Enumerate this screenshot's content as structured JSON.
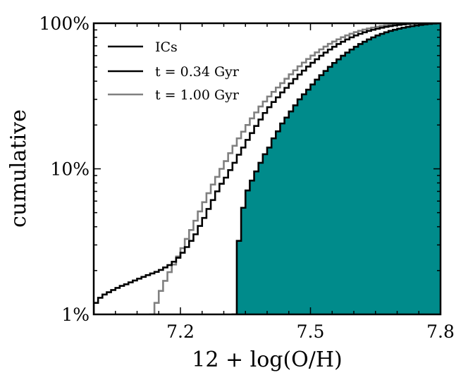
{
  "chart_data": {
    "type": "step",
    "xlabel": "12 + log(O/H)",
    "ylabel": "cumulative",
    "xlim": [
      7.0,
      7.8
    ],
    "ylim_percent": [
      1,
      100
    ],
    "yscale": "log",
    "x_ticks": [
      7.2,
      7.5,
      7.8
    ],
    "x_tick_labels": [
      "7.2",
      "7.5",
      "7.8"
    ],
    "y_ticks": [
      1,
      10,
      100
    ],
    "y_tick_labels": [
      "1%",
      "10%",
      "100%"
    ],
    "legend_position": "top-left",
    "series": [
      {
        "name": "ICs",
        "color": "#000000",
        "fill": "#008b8b",
        "filled": true,
        "points": [
          [
            7.32,
            1.0
          ],
          [
            7.33,
            3.2
          ],
          [
            7.34,
            5.4
          ],
          [
            7.35,
            7.1
          ],
          [
            7.36,
            8.3
          ],
          [
            7.37,
            9.6
          ],
          [
            7.38,
            11.0
          ],
          [
            7.39,
            12.6
          ],
          [
            7.4,
            14.0
          ],
          [
            7.41,
            16.2
          ],
          [
            7.42,
            18.1
          ],
          [
            7.43,
            20.5
          ],
          [
            7.44,
            22.5
          ],
          [
            7.45,
            24.8
          ],
          [
            7.46,
            27.3
          ],
          [
            7.47,
            30.0
          ],
          [
            7.48,
            32.5
          ],
          [
            7.49,
            35.0
          ],
          [
            7.5,
            38.0
          ],
          [
            7.51,
            41.0
          ],
          [
            7.52,
            44.0
          ],
          [
            7.53,
            47.0
          ],
          [
            7.54,
            50.2
          ],
          [
            7.55,
            53.4
          ],
          [
            7.56,
            56.5
          ],
          [
            7.57,
            59.8
          ],
          [
            7.58,
            62.9
          ],
          [
            7.59,
            66.0
          ],
          [
            7.6,
            69.0
          ],
          [
            7.61,
            72.0
          ],
          [
            7.62,
            74.7
          ],
          [
            7.63,
            77.4
          ],
          [
            7.64,
            80.0
          ],
          [
            7.65,
            82.4
          ],
          [
            7.66,
            84.6
          ],
          [
            7.67,
            86.7
          ],
          [
            7.68,
            88.6
          ],
          [
            7.69,
            90.3
          ],
          [
            7.7,
            91.8
          ],
          [
            7.71,
            93.2
          ],
          [
            7.72,
            94.5
          ],
          [
            7.73,
            95.6
          ],
          [
            7.74,
            96.6
          ],
          [
            7.75,
            97.5
          ],
          [
            7.76,
            98.3
          ],
          [
            7.77,
            99.0
          ],
          [
            7.78,
            99.5
          ],
          [
            7.79,
            100.0
          ]
        ]
      },
      {
        "name": "t = 0.34 Gyr",
        "color": "#000000",
        "points": [
          [
            7.0,
            1.2
          ],
          [
            7.01,
            1.3
          ],
          [
            7.02,
            1.37
          ],
          [
            7.03,
            1.42
          ],
          [
            7.04,
            1.47
          ],
          [
            7.05,
            1.52
          ],
          [
            7.06,
            1.57
          ],
          [
            7.07,
            1.61
          ],
          [
            7.08,
            1.66
          ],
          [
            7.09,
            1.71
          ],
          [
            7.1,
            1.76
          ],
          [
            7.11,
            1.81
          ],
          [
            7.12,
            1.86
          ],
          [
            7.13,
            1.91
          ],
          [
            7.14,
            1.96
          ],
          [
            7.15,
            2.02
          ],
          [
            7.16,
            2.1
          ],
          [
            7.17,
            2.18
          ],
          [
            7.18,
            2.3
          ],
          [
            7.19,
            2.45
          ],
          [
            7.2,
            2.65
          ],
          [
            7.21,
            2.9
          ],
          [
            7.22,
            3.2
          ],
          [
            7.23,
            3.55
          ],
          [
            7.24,
            4.05
          ],
          [
            7.25,
            4.6
          ],
          [
            7.26,
            5.3
          ],
          [
            7.27,
            6.1
          ],
          [
            7.28,
            7.0
          ],
          [
            7.29,
            7.9
          ],
          [
            7.3,
            8.7
          ],
          [
            7.31,
            9.8
          ],
          [
            7.32,
            11.0
          ],
          [
            7.33,
            12.5
          ],
          [
            7.34,
            14.0
          ],
          [
            7.35,
            15.8
          ],
          [
            7.36,
            17.6
          ],
          [
            7.37,
            19.7
          ],
          [
            7.38,
            21.8
          ],
          [
            7.39,
            24.2
          ],
          [
            7.4,
            26.5
          ],
          [
            7.41,
            28.8
          ],
          [
            7.42,
            31.0
          ],
          [
            7.43,
            33.5
          ],
          [
            7.44,
            36.0
          ],
          [
            7.45,
            38.6
          ],
          [
            7.46,
            41.4
          ],
          [
            7.47,
            44.4
          ],
          [
            7.48,
            47.3
          ],
          [
            7.49,
            50.4
          ],
          [
            7.5,
            53.5
          ],
          [
            7.51,
            56.6
          ],
          [
            7.52,
            59.8
          ],
          [
            7.53,
            62.9
          ],
          [
            7.54,
            66.0
          ],
          [
            7.55,
            69.0
          ],
          [
            7.56,
            72.0
          ],
          [
            7.57,
            74.7
          ],
          [
            7.58,
            77.4
          ],
          [
            7.59,
            80.0
          ],
          [
            7.6,
            82.4
          ],
          [
            7.61,
            84.6
          ],
          [
            7.62,
            86.7
          ],
          [
            7.63,
            88.6
          ],
          [
            7.64,
            90.3
          ],
          [
            7.65,
            91.8
          ],
          [
            7.66,
            93.2
          ],
          [
            7.67,
            94.5
          ],
          [
            7.68,
            95.6
          ],
          [
            7.69,
            96.6
          ],
          [
            7.7,
            97.5
          ],
          [
            7.71,
            98.3
          ],
          [
            7.72,
            99.0
          ],
          [
            7.73,
            99.5
          ],
          [
            7.74,
            100.0
          ]
        ]
      },
      {
        "name": "t = 1.00 Gyr",
        "color": "#808080",
        "points": [
          [
            7.13,
            1.0
          ],
          [
            7.14,
            1.2
          ],
          [
            7.15,
            1.45
          ],
          [
            7.16,
            1.7
          ],
          [
            7.17,
            1.95
          ],
          [
            7.18,
            2.2
          ],
          [
            7.19,
            2.5
          ],
          [
            7.2,
            2.85
          ],
          [
            7.21,
            3.3
          ],
          [
            7.22,
            3.8
          ],
          [
            7.23,
            4.4
          ],
          [
            7.24,
            5.1
          ],
          [
            7.25,
            5.9
          ],
          [
            7.26,
            6.8
          ],
          [
            7.27,
            7.8
          ],
          [
            7.28,
            8.8
          ],
          [
            7.29,
            10.0
          ],
          [
            7.3,
            11.3
          ],
          [
            7.31,
            12.8
          ],
          [
            7.32,
            14.4
          ],
          [
            7.33,
            16.2
          ],
          [
            7.34,
            18.0
          ],
          [
            7.35,
            20.0
          ],
          [
            7.36,
            22.2
          ],
          [
            7.37,
            24.4
          ],
          [
            7.38,
            26.8
          ],
          [
            7.39,
            29.0
          ],
          [
            7.4,
            31.4
          ],
          [
            7.41,
            33.8
          ],
          [
            7.42,
            36.2
          ],
          [
            7.43,
            38.8
          ],
          [
            7.44,
            41.6
          ],
          [
            7.45,
            44.6
          ],
          [
            7.46,
            47.5
          ],
          [
            7.47,
            50.6
          ],
          [
            7.48,
            53.7
          ],
          [
            7.49,
            56.8
          ],
          [
            7.5,
            60.0
          ],
          [
            7.51,
            63.1
          ],
          [
            7.52,
            66.2
          ],
          [
            7.53,
            69.2
          ],
          [
            7.54,
            72.2
          ],
          [
            7.55,
            74.9
          ],
          [
            7.56,
            77.6
          ],
          [
            7.57,
            80.2
          ],
          [
            7.58,
            82.6
          ],
          [
            7.59,
            84.8
          ],
          [
            7.6,
            86.9
          ],
          [
            7.61,
            88.8
          ],
          [
            7.62,
            90.5
          ],
          [
            7.63,
            92.0
          ],
          [
            7.64,
            93.4
          ],
          [
            7.65,
            94.7
          ],
          [
            7.66,
            95.8
          ],
          [
            7.67,
            96.8
          ],
          [
            7.68,
            97.7
          ],
          [
            7.69,
            98.5
          ],
          [
            7.7,
            99.1
          ],
          [
            7.71,
            99.6
          ],
          [
            7.72,
            100.0
          ]
        ]
      }
    ]
  }
}
